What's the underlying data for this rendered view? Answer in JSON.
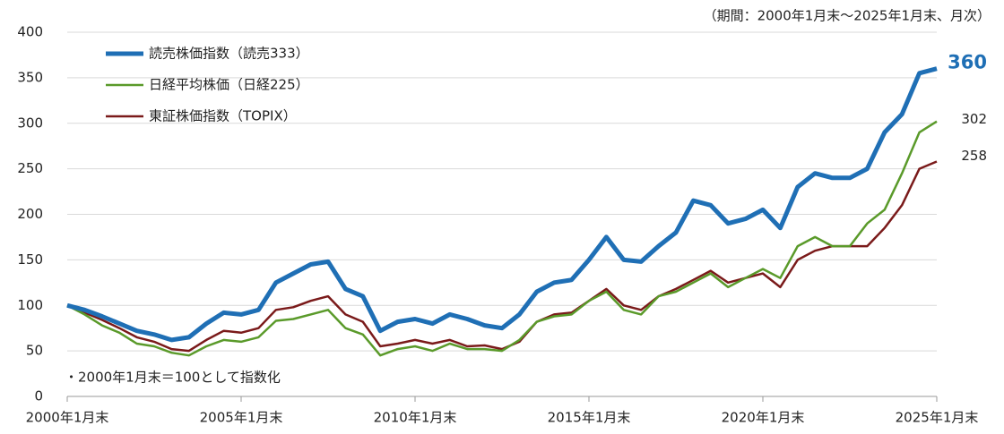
{
  "chart_data": {
    "type": "line",
    "note": "（期間：2000年1月末～2025年1月末、月次）",
    "annotation": "・2000年1月末＝100として指数化",
    "x": [
      2000,
      2000.5,
      2001,
      2001.5,
      2002,
      2002.5,
      2003,
      2003.5,
      2004,
      2004.5,
      2005,
      2005.5,
      2006,
      2006.5,
      2007,
      2007.5,
      2008,
      2008.5,
      2009,
      2009.5,
      2010,
      2010.5,
      2011,
      2011.5,
      2012,
      2012.5,
      2013,
      2013.5,
      2014,
      2014.5,
      2015,
      2015.5,
      2016,
      2016.5,
      2017,
      2017.5,
      2018,
      2018.5,
      2019,
      2019.5,
      2020,
      2020.5,
      2021,
      2021.5,
      2022,
      2022.5,
      2023,
      2023.5,
      2024,
      2024.5,
      2025
    ],
    "xlim": [
      2000,
      2025
    ],
    "xticks": [
      {
        "value": 2000,
        "label": "2000年1月末"
      },
      {
        "value": 2005,
        "label": "2005年1月末"
      },
      {
        "value": 2010,
        "label": "2010年1月末"
      },
      {
        "value": 2015,
        "label": "2015年1月末"
      },
      {
        "value": 2020,
        "label": "2020年1月末"
      },
      {
        "value": 2025,
        "label": "2025年1月末"
      }
    ],
    "ylim": [
      0,
      400
    ],
    "yticks": [
      0,
      50,
      100,
      150,
      200,
      250,
      300,
      350,
      400
    ],
    "grid": true,
    "legend": "top-left",
    "series": [
      {
        "name": "読売株価指数（読売333）",
        "color": "#1f6fb5",
        "values": [
          100,
          95,
          88,
          80,
          72,
          68,
          62,
          65,
          80,
          92,
          90,
          95,
          125,
          135,
          145,
          148,
          118,
          110,
          72,
          82,
          85,
          80,
          90,
          85,
          78,
          75,
          90,
          115,
          125,
          128,
          150,
          175,
          150,
          148,
          165,
          180,
          215,
          210,
          190,
          195,
          205,
          185,
          230,
          245,
          240,
          240,
          250,
          290,
          310,
          355,
          360
        ]
      },
      {
        "name": "日経平均株価（日経225）",
        "color": "#5a9a2a",
        "values": [
          100,
          90,
          78,
          70,
          58,
          55,
          48,
          45,
          55,
          62,
          60,
          65,
          83,
          85,
          90,
          95,
          75,
          68,
          45,
          52,
          55,
          50,
          58,
          52,
          52,
          50,
          62,
          82,
          88,
          90,
          105,
          115,
          95,
          90,
          110,
          115,
          125,
          135,
          120,
          130,
          140,
          130,
          165,
          175,
          165,
          165,
          190,
          205,
          245,
          290,
          302
        ]
      },
      {
        "name": "東証株価指数（TOPIX）",
        "color": "#7a1a1a",
        "values": [
          100,
          92,
          84,
          75,
          65,
          60,
          52,
          50,
          62,
          72,
          70,
          75,
          95,
          98,
          105,
          110,
          90,
          82,
          55,
          58,
          62,
          58,
          62,
          55,
          56,
          52,
          60,
          82,
          90,
          92,
          105,
          118,
          100,
          95,
          110,
          118,
          128,
          138,
          125,
          130,
          135,
          120,
          150,
          160,
          165,
          165,
          165,
          185,
          210,
          250,
          258
        ]
      }
    ]
  }
}
